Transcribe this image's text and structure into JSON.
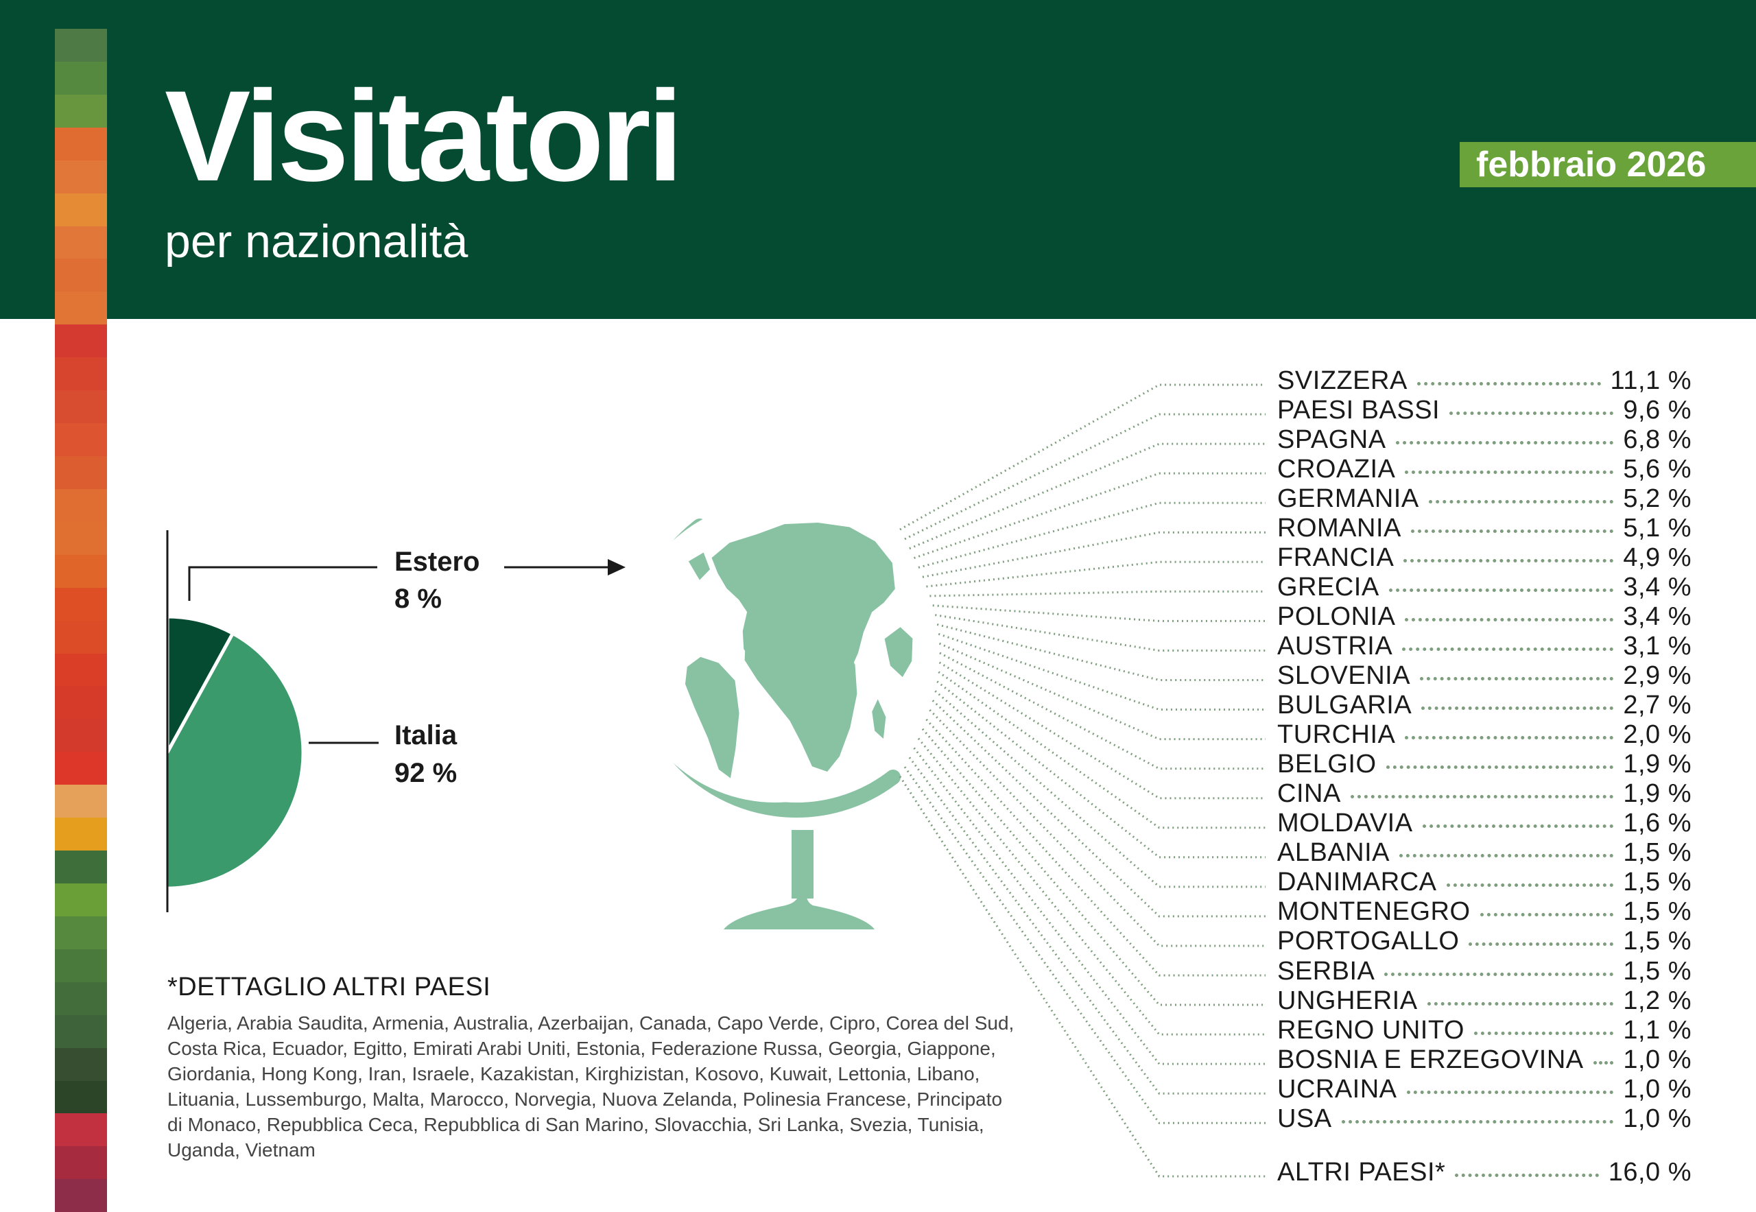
{
  "header": {
    "title": "Visitatori",
    "subtitle": "per nazionalità",
    "date": "febbraio 2026"
  },
  "colors": {
    "header_bg": "#054b32",
    "badge_bg": "#69a33a",
    "estero_slice": "#054b32",
    "italia_slice": "#3b9a6b",
    "globe": "#89c2a3",
    "leader_dots": "#7d9d7d",
    "stripe": [
      "#4e7a45",
      "#55893f",
      "#67963f",
      "#e06c32",
      "#e2773a",
      "#e58b35",
      "#e2773a",
      "#df6e34",
      "#e07535",
      "#d43a30",
      "#d8452f",
      "#d84d30",
      "#dc5530",
      "#dc5d30",
      "#e06d32",
      "#e06f32",
      "#e06528",
      "#de4f25",
      "#dc4c26",
      "#da3e27",
      "#d63a29",
      "#d43a2c",
      "#dd3729",
      "#e5a15a",
      "#e69e1e",
      "#3e6e3a",
      "#6a9f38",
      "#56883e",
      "#4a7b3c",
      "#446d3c",
      "#3e6239",
      "#374f30",
      "#2c4427",
      "#c1313f",
      "#a72b3e",
      "#8e2d49"
    ]
  },
  "chart_data": [
    {
      "type": "pie",
      "categories": [
        "Estero",
        "Italia"
      ],
      "values": [
        8,
        92
      ],
      "labels": [
        "8 %",
        "92 %"
      ]
    },
    {
      "type": "table",
      "columns": [
        "country",
        "share"
      ],
      "rows": [
        {
          "country": "SVIZZERA",
          "value": 11.1,
          "label": "11,1 %"
        },
        {
          "country": "PAESI BASSI",
          "value": 9.6,
          "label": "9,6 %"
        },
        {
          "country": "SPAGNA",
          "value": 6.8,
          "label": "6,8 %"
        },
        {
          "country": "CROAZIA",
          "value": 5.6,
          "label": "5,6 %"
        },
        {
          "country": "GERMANIA",
          "value": 5.2,
          "label": "5,2 %"
        },
        {
          "country": "ROMANIA",
          "value": 5.1,
          "label": "5,1 %"
        },
        {
          "country": "FRANCIA",
          "value": 4.9,
          "label": "4,9 %"
        },
        {
          "country": "GRECIA",
          "value": 3.4,
          "label": "3,4 %"
        },
        {
          "country": "POLONIA",
          "value": 3.4,
          "label": "3,4 %"
        },
        {
          "country": "AUSTRIA",
          "value": 3.1,
          "label": "3,1 %"
        },
        {
          "country": "SLOVENIA",
          "value": 2.9,
          "label": "2,9 %"
        },
        {
          "country": "BULGARIA",
          "value": 2.7,
          "label": "2,7 %"
        },
        {
          "country": "TURCHIA",
          "value": 2.0,
          "label": "2,0 %"
        },
        {
          "country": "BELGIO",
          "value": 1.9,
          "label": "1,9 %"
        },
        {
          "country": "CINA",
          "value": 1.9,
          "label": "1,9 %"
        },
        {
          "country": "MOLDAVIA",
          "value": 1.6,
          "label": "1,6 %"
        },
        {
          "country": "ALBANIA",
          "value": 1.5,
          "label": "1,5 %"
        },
        {
          "country": "DANIMARCA",
          "value": 1.5,
          "label": "1,5 %"
        },
        {
          "country": "MONTENEGRO",
          "value": 1.5,
          "label": "1,5 %"
        },
        {
          "country": "PORTOGALLO",
          "value": 1.5,
          "label": "1,5 %"
        },
        {
          "country": "SERBIA",
          "value": 1.5,
          "label": "1,5 %"
        },
        {
          "country": "UNGHERIA",
          "value": 1.2,
          "label": "1,2 %"
        },
        {
          "country": "REGNO UNITO",
          "value": 1.1,
          "label": "1,1 %"
        },
        {
          "country": "BOSNIA E ERZEGOVINA",
          "value": 1.0,
          "label": "1,0 %"
        },
        {
          "country": "UCRAINA",
          "value": 1.0,
          "label": "1,0 %"
        },
        {
          "country": "USA",
          "value": 1.0,
          "label": "1,0 %"
        },
        {
          "country": "ALTRI PAESI*",
          "value": 16.0,
          "label": "16,0 %"
        }
      ]
    }
  ],
  "detail": {
    "title": "*DETTAGLIO ALTRI PAESI",
    "text": "Algeria, Arabia Saudita, Armenia, Australia, Azerbaijan, Canada, Capo Verde, Cipro, Corea del Sud, Costa Rica, Ecuador, Egitto, Emirati Arabi Uniti, Estonia, Federazione Russa, Georgia, Giappone, Giordania, Hong Kong, Iran, Israele, Kazakistan, Kirghizistan, Kosovo, Kuwait, Lettonia, Libano, Lituania, Lussemburgo, Malta, Marocco, Norvegia, Nuova Zelanda, Polinesia Francese, Principato di Monaco, Repubblica Ceca, Repubblica di San Marino, Slovacchia, Sri Lanka, Svezia, Tunisia, Uganda, Vietnam"
  }
}
